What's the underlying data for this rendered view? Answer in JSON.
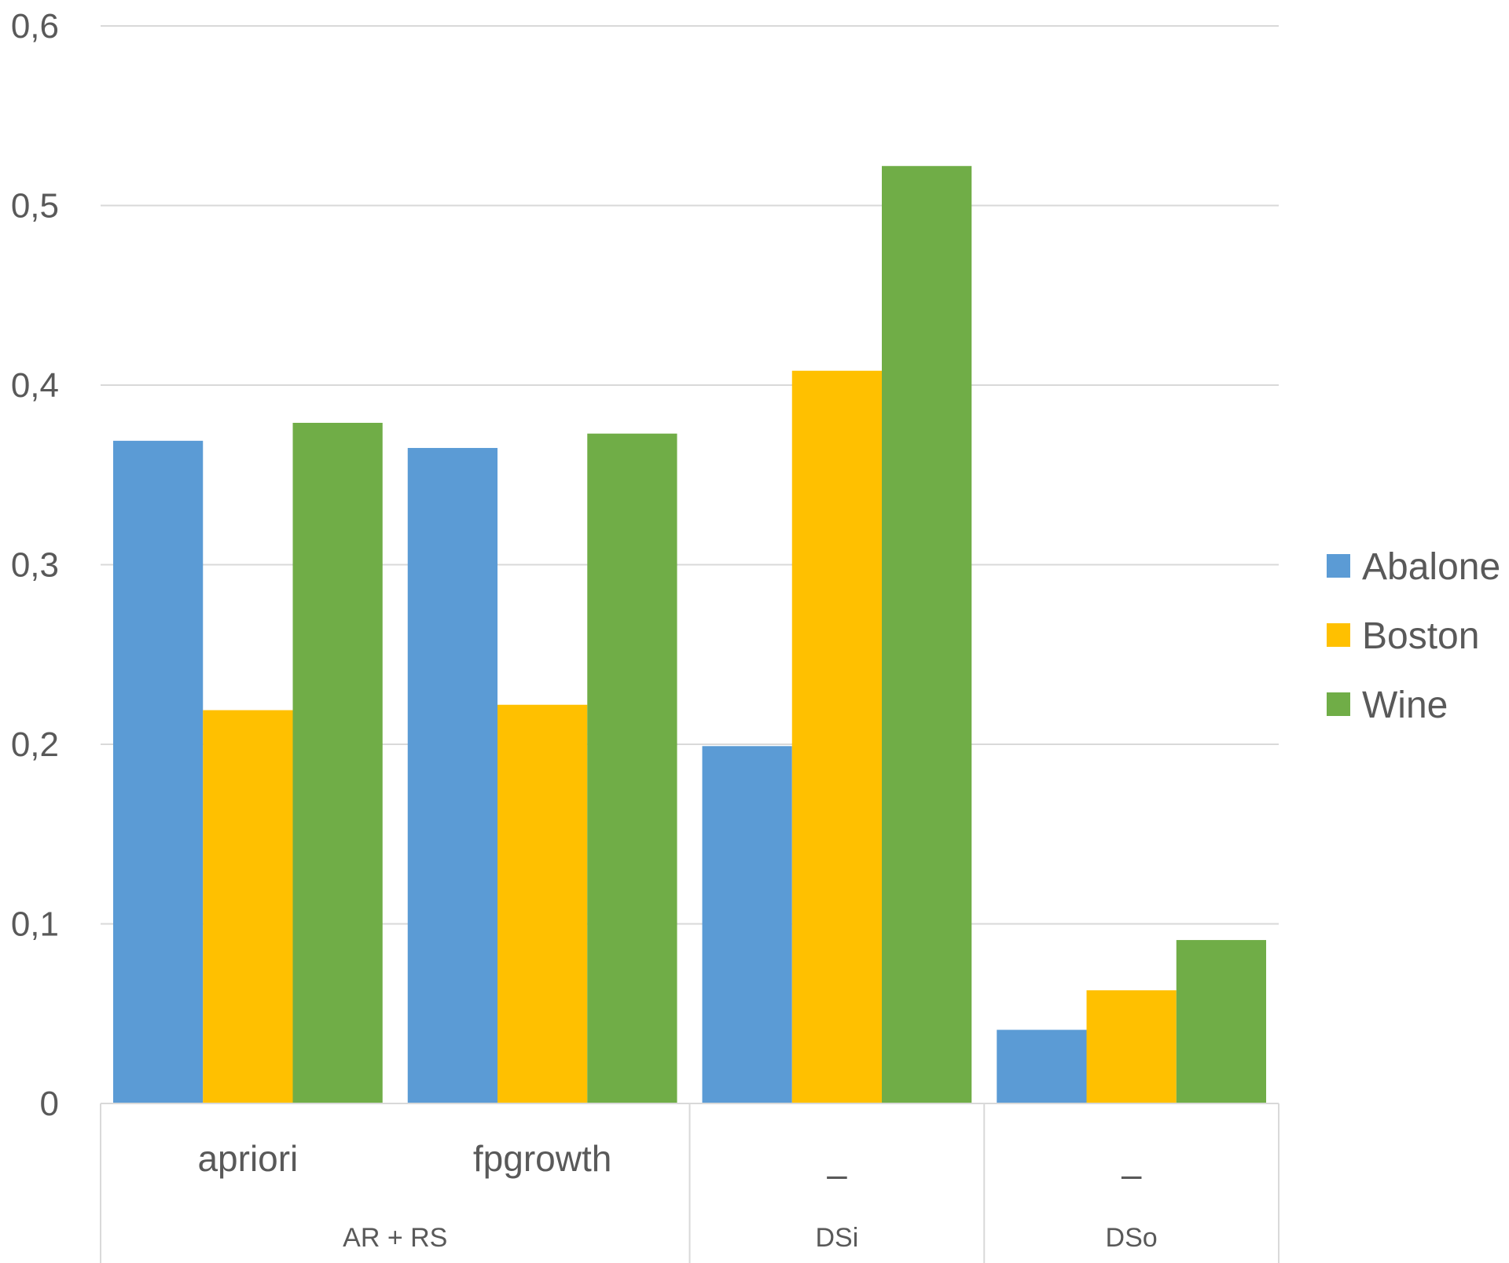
{
  "chart_data": {
    "type": "bar",
    "categories": [
      "apriori",
      "fpgrowth",
      "–",
      "–"
    ],
    "groups": [
      {
        "label": "AR + RS",
        "categories": [
          "apriori",
          "fpgrowth"
        ]
      },
      {
        "label": "DSi",
        "categories": [
          "–"
        ]
      },
      {
        "label": "DSo",
        "categories": [
          "–"
        ]
      }
    ],
    "series": [
      {
        "name": "Abalone",
        "color": "#5B9BD5",
        "values": [
          0.369,
          0.365,
          0.199,
          0.041
        ]
      },
      {
        "name": "Boston",
        "color": "#FFC000",
        "values": [
          0.219,
          0.222,
          0.408,
          0.063
        ]
      },
      {
        "name": "Wine",
        "color": "#70AD47",
        "values": [
          0.379,
          0.373,
          0.522,
          0.091
        ]
      }
    ],
    "yticks": [
      "0",
      "0,1",
      "0,2",
      "0,3",
      "0,4",
      "0,5",
      "0,6"
    ],
    "ylim": [
      0,
      0.6
    ],
    "grid": true,
    "legend_position": "right",
    "title": "",
    "xlabel": "",
    "ylabel": ""
  }
}
